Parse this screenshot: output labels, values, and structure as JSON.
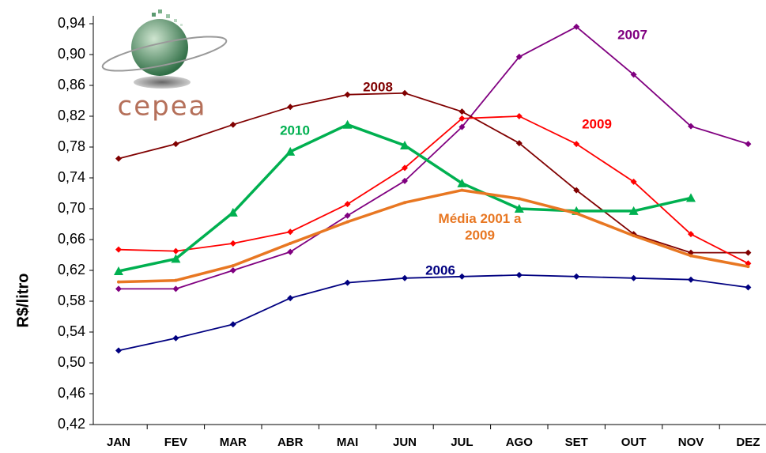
{
  "chart_data": {
    "type": "line",
    "logo": "CEPEA",
    "y_label": "R$/litro",
    "categories": [
      "JAN",
      "FEV",
      "MAR",
      "ABR",
      "MAI",
      "JUN",
      "JUL",
      "AGO",
      "SET",
      "OUT",
      "NOV",
      "DEZ"
    ],
    "ylim": [
      0.42,
      0.94
    ],
    "yticks": [
      {
        "value": 0.42,
        "label": "0,42"
      },
      {
        "value": 0.46,
        "label": "0,46"
      },
      {
        "value": 0.5,
        "label": "0,50"
      },
      {
        "value": 0.54,
        "label": "0,54"
      },
      {
        "value": 0.58,
        "label": "0,58"
      },
      {
        "value": 0.62,
        "label": "0,62"
      },
      {
        "value": 0.66,
        "label": "0,66"
      },
      {
        "value": 0.7,
        "label": "0,70"
      },
      {
        "value": 0.74,
        "label": "0,74"
      },
      {
        "value": 0.78,
        "label": "0,78"
      },
      {
        "value": 0.82,
        "label": "0,82"
      },
      {
        "value": 0.86,
        "label": "0,86"
      },
      {
        "value": 0.9,
        "label": "0,90"
      },
      {
        "value": 0.94,
        "label": "0,94"
      }
    ],
    "grid": false,
    "series": [
      {
        "name": "2007",
        "color": "#800080",
        "marker": "diamond",
        "values": [
          0.596,
          0.596,
          0.62,
          0.644,
          0.691,
          0.736,
          0.806,
          0.897,
          0.936,
          0.874,
          0.807,
          0.784
        ]
      },
      {
        "name": "2008",
        "color": "#800000",
        "marker": "diamond",
        "values": [
          0.765,
          0.784,
          0.809,
          0.832,
          0.848,
          0.85,
          0.826,
          0.785,
          0.724,
          0.667,
          0.643,
          0.643
        ]
      },
      {
        "name": "2009",
        "color": "#ff0000",
        "marker": "diamond",
        "values": [
          0.647,
          0.645,
          0.655,
          0.67,
          0.706,
          0.753,
          0.817,
          0.82,
          0.784,
          0.735,
          0.667,
          0.629
        ]
      },
      {
        "name": "2010",
        "color": "#00b050",
        "marker": "triangle",
        "values": [
          0.619,
          0.635,
          0.695,
          0.774,
          0.809,
          0.782,
          0.733,
          0.7,
          0.697,
          0.697,
          0.714,
          null
        ]
      },
      {
        "name": "2006",
        "color": "#000080",
        "marker": "diamond",
        "values": [
          0.516,
          0.532,
          0.55,
          0.584,
          0.604,
          0.61,
          0.612,
          0.614,
          0.612,
          0.61,
          0.608,
          0.598
        ]
      },
      {
        "name": "Média 2001 a 2009",
        "color": "#e87722",
        "marker": "dot",
        "values": [
          0.605,
          0.607,
          0.626,
          0.655,
          0.683,
          0.708,
          0.724,
          0.713,
          0.694,
          0.665,
          0.639,
          0.625
        ]
      }
    ]
  }
}
